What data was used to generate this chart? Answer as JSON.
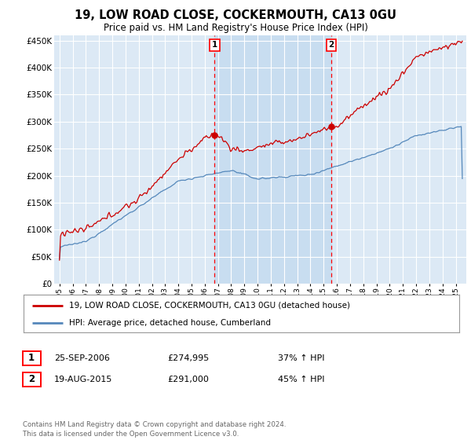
{
  "title": "19, LOW ROAD CLOSE, COCKERMOUTH, CA13 0GU",
  "subtitle": "Price paid vs. HM Land Registry's House Price Index (HPI)",
  "red_label": "19, LOW ROAD CLOSE, COCKERMOUTH, CA13 0GU (detached house)",
  "blue_label": "HPI: Average price, detached house, Cumberland",
  "purchase1_date": "25-SEP-2006",
  "purchase1_price": 274995,
  "purchase1_pct": "37% ↑ HPI",
  "purchase1_year": 2006.75,
  "purchase2_date": "19-AUG-2015",
  "purchase2_price": 291000,
  "purchase2_pct": "45% ↑ HPI",
  "purchase2_year": 2015.583,
  "footer": "Contains HM Land Registry data © Crown copyright and database right 2024.\nThis data is licensed under the Open Government Licence v3.0.",
  "ylim": [
    0,
    460000
  ],
  "yticks": [
    0,
    50000,
    100000,
    150000,
    200000,
    250000,
    300000,
    350000,
    400000,
    450000
  ],
  "background_color": "#ffffff",
  "plot_bg_color": "#dce9f5",
  "grid_color": "#ffffff",
  "red_color": "#cc0000",
  "blue_color": "#5588bb",
  "shade_color": "#c8ddf0"
}
